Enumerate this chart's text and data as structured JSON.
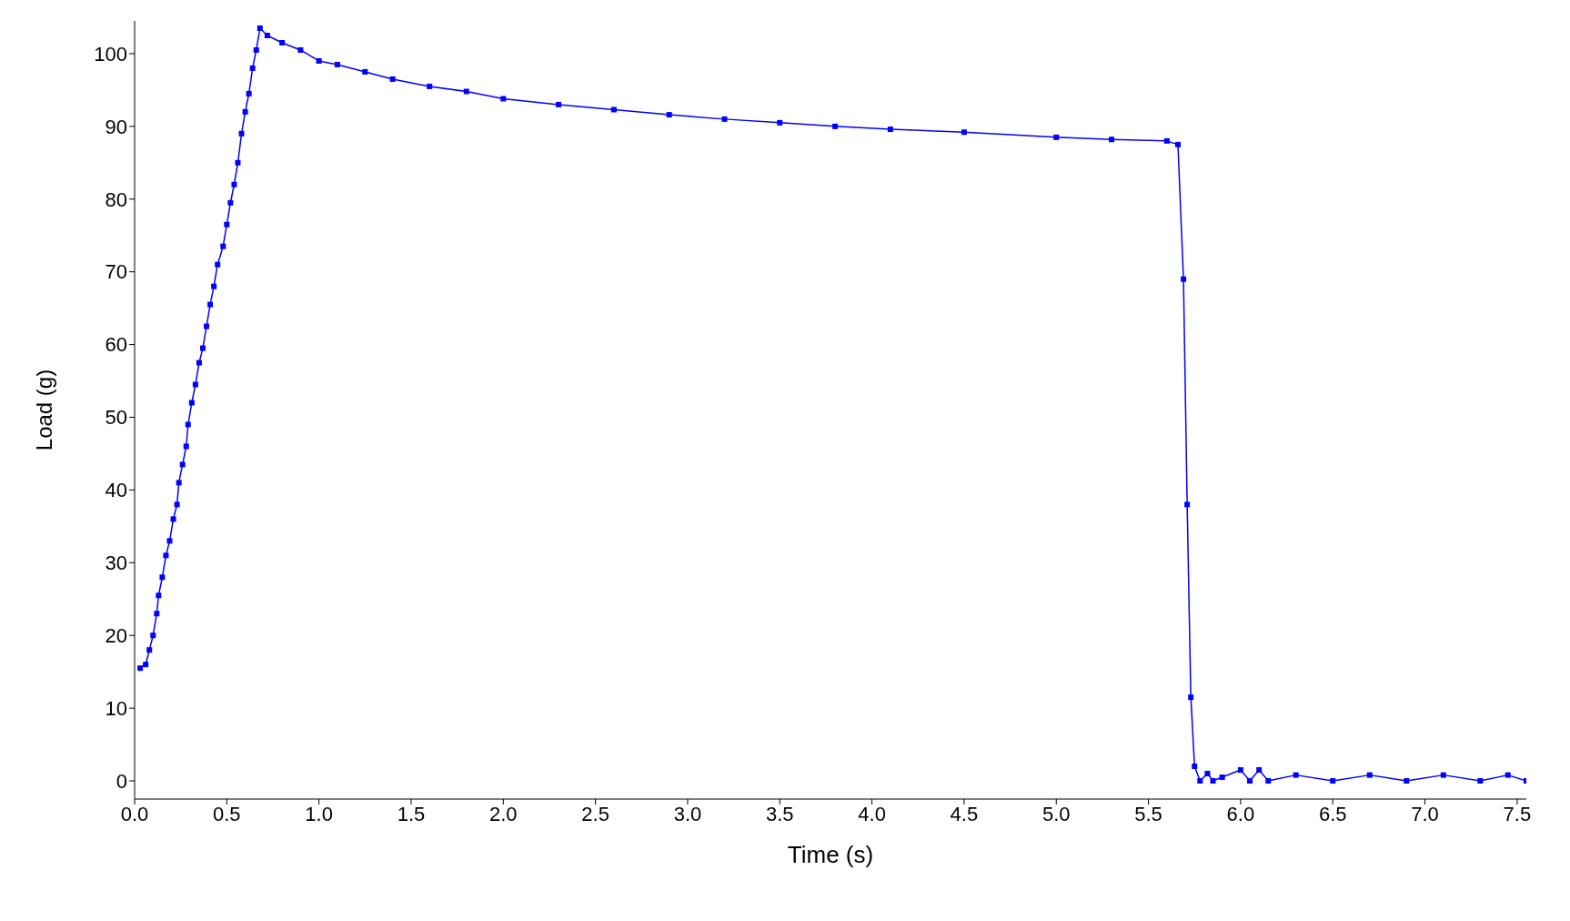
{
  "chart_data": {
    "type": "line",
    "xlabel": "Time (s)",
    "ylabel": "Load (g)",
    "x": [
      0.03,
      0.06,
      0.08,
      0.1,
      0.12,
      0.13,
      0.15,
      0.17,
      0.19,
      0.21,
      0.23,
      0.24,
      0.26,
      0.28,
      0.29,
      0.31,
      0.33,
      0.35,
      0.37,
      0.39,
      0.41,
      0.43,
      0.45,
      0.48,
      0.5,
      0.52,
      0.54,
      0.56,
      0.58,
      0.6,
      0.62,
      0.64,
      0.66,
      0.68,
      0.72,
      0.8,
      0.9,
      1.0,
      1.1,
      1.25,
      1.4,
      1.6,
      1.8,
      2.0,
      2.3,
      2.6,
      2.9,
      3.2,
      3.5,
      3.8,
      4.1,
      4.5,
      5.0,
      5.3,
      5.6,
      5.66,
      5.69,
      5.71,
      5.73,
      5.75,
      5.78,
      5.82,
      5.85,
      5.9,
      6.0,
      6.05,
      6.1,
      6.15,
      6.3,
      6.5,
      6.7,
      6.9,
      7.1,
      7.3,
      7.45,
      7.55
    ],
    "series": [
      {
        "color": "#0000ff",
        "values": [
          15.5,
          16,
          18,
          20,
          23,
          25.5,
          28,
          31,
          33,
          36,
          38,
          41,
          43.5,
          46,
          49,
          52,
          54.5,
          57.5,
          59.5,
          62.5,
          65.5,
          68,
          71,
          73.5,
          76.5,
          79.5,
          82,
          85,
          89,
          92,
          94.5,
          98,
          100.5,
          103.5,
          102.5,
          101.5,
          100.5,
          99,
          98.5,
          97.5,
          96.5,
          95.5,
          94.8,
          93.8,
          93,
          92.3,
          91.6,
          91,
          90.5,
          90,
          89.6,
          89.2,
          88.5,
          88.2,
          88,
          87.5,
          69,
          38,
          11.5,
          2,
          0,
          1,
          0,
          0.5,
          1.5,
          0,
          1.5,
          0,
          0.8,
          0,
          0.8,
          0,
          0.8,
          0,
          0.8,
          0
        ]
      }
    ],
    "xlim": [
      0,
      7.55
    ],
    "xticks": [
      {
        "value": 0,
        "label": "0.0"
      },
      0.5,
      {
        "value": 1,
        "label": "1.0"
      },
      1.5,
      {
        "value": 2,
        "label": "2.0"
      },
      2.5,
      {
        "value": 3,
        "label": "3.0"
      },
      3.5,
      {
        "value": 4,
        "label": "4.0"
      },
      4.5,
      {
        "value": 5,
        "label": "5.0"
      },
      5.5,
      {
        "value": 6,
        "label": "6.0"
      },
      6.5,
      {
        "value": 7,
        "label": "7.0"
      },
      7.5
    ],
    "ylim": [
      -2.5,
      104.5
    ],
    "yticks": [
      0,
      10,
      20,
      30,
      40,
      50,
      60,
      70,
      80,
      90,
      100
    ],
    "grid": false,
    "legend": false,
    "marker": "square",
    "line_style": "solid"
  }
}
